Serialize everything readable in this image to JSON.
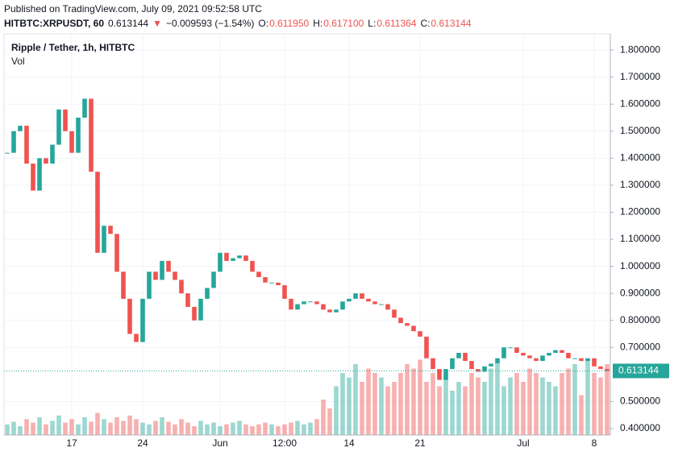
{
  "header": {
    "published": "Published on TradingView.com, July 09, 2021 09:52:58 UTC",
    "symbol": "HITBTC:XRPUSDT, 60",
    "price": "0.613144",
    "arrow": "▼",
    "change": "−0.009593 (−1.54%)",
    "o_label": "O:",
    "o": "0.611950",
    "h_label": "H:",
    "h": "0.617100",
    "l_label": "L:",
    "l": "0.611364",
    "c_label": "C:",
    "c": "0.613144"
  },
  "chart_data": {
    "type": "candlestick",
    "title": "Ripple / Tether, 1h, HITBTC",
    "volume_label": "Vol",
    "up_color": "#26a69a",
    "down_color": "#ef5350",
    "categories": [
      null,
      null,
      null,
      null,
      null,
      null,
      null,
      null,
      null,
      null,
      "17",
      null,
      null,
      null,
      null,
      null,
      null,
      null,
      null,
      null,
      null,
      "24",
      null,
      null,
      null,
      null,
      null,
      null,
      null,
      null,
      null,
      null,
      null,
      "Jun",
      null,
      null,
      null,
      null,
      null,
      null,
      null,
      null,
      null,
      "12:00",
      null,
      null,
      null,
      null,
      null,
      null,
      null,
      null,
      null,
      "14",
      null,
      null,
      null,
      null,
      null,
      null,
      null,
      null,
      null,
      null,
      "21",
      null,
      null,
      null,
      null,
      null,
      null,
      null,
      null,
      null,
      null,
      null,
      null,
      null,
      null,
      null,
      "Jul",
      null,
      null,
      null,
      null,
      null,
      null,
      null,
      null,
      null,
      null,
      "8",
      null,
      null
    ],
    "values": [
      1.42,
      1.5,
      1.52,
      1.38,
      1.28,
      1.4,
      1.38,
      1.45,
      1.58,
      1.5,
      1.42,
      1.55,
      1.62,
      1.35,
      1.05,
      1.15,
      1.12,
      0.98,
      0.88,
      0.75,
      0.72,
      0.88,
      0.98,
      0.95,
      1.02,
      0.98,
      0.95,
      0.9,
      0.85,
      0.8,
      0.88,
      0.92,
      0.98,
      1.05,
      1.02,
      1.03,
      1.04,
      1.02,
      0.98,
      0.96,
      0.94,
      0.94,
      0.93,
      0.88,
      0.84,
      0.86,
      0.87,
      0.87,
      0.86,
      0.84,
      0.83,
      0.84,
      0.87,
      0.88,
      0.9,
      0.88,
      0.87,
      0.86,
      0.86,
      0.84,
      0.81,
      0.79,
      0.78,
      0.76,
      0.74,
      0.66,
      0.62,
      0.58,
      0.62,
      0.66,
      0.68,
      0.65,
      0.62,
      0.61,
      0.63,
      0.64,
      0.66,
      0.7,
      0.7,
      0.68,
      0.67,
      0.66,
      0.65,
      0.67,
      0.68,
      0.69,
      0.68,
      0.66,
      0.66,
      0.65,
      0.66,
      0.63,
      0.62,
      0.613144
    ],
    "volume": [
      12,
      15,
      10,
      18,
      14,
      20,
      12,
      16,
      22,
      14,
      18,
      12,
      20,
      15,
      25,
      18,
      14,
      20,
      16,
      22,
      18,
      14,
      12,
      16,
      20,
      15,
      12,
      18,
      14,
      10,
      16,
      12,
      14,
      10,
      12,
      14,
      16,
      12,
      10,
      12,
      14,
      12,
      10,
      12,
      14,
      16,
      12,
      14,
      18,
      40,
      30,
      55,
      70,
      65,
      80,
      60,
      75,
      70,
      65,
      55,
      60,
      70,
      80,
      75,
      85,
      60,
      70,
      55,
      65,
      50,
      60,
      55,
      70,
      65,
      60,
      75,
      80,
      55,
      65,
      70,
      60,
      75,
      70,
      65,
      60,
      55,
      70,
      75,
      80,
      45,
      85,
      70,
      65,
      80
    ],
    "vlim": [
      0,
      100
    ],
    "ylim": [
      0.376,
      1.86
    ],
    "yticks": [
      {
        "value": 1.8,
        "label": "1.800000"
      },
      {
        "value": 1.7,
        "label": "1.700000"
      },
      {
        "value": 1.6,
        "label": "1.600000"
      },
      {
        "value": 1.5,
        "label": "1.500000"
      },
      {
        "value": 1.4,
        "label": "1.400000"
      },
      {
        "value": 1.3,
        "label": "1.300000"
      },
      {
        "value": 1.2,
        "label": "1.200000"
      },
      {
        "value": 1.1,
        "label": "1.100000"
      },
      {
        "value": 1.0,
        "label": "1.000000"
      },
      {
        "value": 0.9,
        "label": "0.900000"
      },
      {
        "value": 0.8,
        "label": "0.800000"
      },
      {
        "value": 0.7,
        "label": "0.700000"
      },
      {
        "value": 0.5,
        "label": "0.500000"
      },
      {
        "value": 0.4,
        "label": "0.400000"
      }
    ],
    "grid": true
  }
}
